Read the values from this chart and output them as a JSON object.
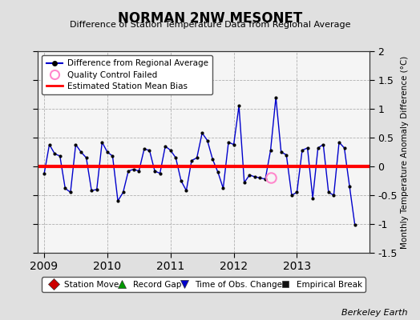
{
  "title": "NORMAN 2NW MESONET",
  "subtitle": "Difference of Station Temperature Data from Regional Average",
  "ylabel_right": "Monthly Temperature Anomaly Difference (°C)",
  "credit": "Berkeley Earth",
  "ylim": [
    -1.5,
    2.0
  ],
  "yticks": [
    -1.5,
    -1.0,
    -0.5,
    0.0,
    0.5,
    1.0,
    1.5,
    2.0
  ],
  "xlim": [
    2008.9,
    2014.15
  ],
  "xticks": [
    2009,
    2010,
    2011,
    2012,
    2013
  ],
  "bias": 0.0,
  "background_color": "#e0e0e0",
  "plot_bg_color": "#f5f5f5",
  "line_color": "#0000cc",
  "marker_color": "#000000",
  "bias_color": "#ff0000",
  "qc_fail_color": "#ff88cc",
  "data_x": [
    2009.0,
    2009.083,
    2009.167,
    2009.25,
    2009.333,
    2009.417,
    2009.5,
    2009.583,
    2009.667,
    2009.75,
    2009.833,
    2009.917,
    2010.0,
    2010.083,
    2010.167,
    2010.25,
    2010.333,
    2010.417,
    2010.5,
    2010.583,
    2010.667,
    2010.75,
    2010.833,
    2010.917,
    2011.0,
    2011.083,
    2011.167,
    2011.25,
    2011.333,
    2011.417,
    2011.5,
    2011.583,
    2011.667,
    2011.75,
    2011.833,
    2011.917,
    2012.0,
    2012.083,
    2012.167,
    2012.25,
    2012.333,
    2012.417,
    2012.5,
    2012.583,
    2012.667,
    2012.75,
    2012.833,
    2012.917,
    2013.0,
    2013.083,
    2013.167,
    2013.25,
    2013.333,
    2013.417,
    2013.5,
    2013.583,
    2013.667,
    2013.75,
    2013.833,
    2013.917
  ],
  "data_y": [
    -0.13,
    0.38,
    0.22,
    0.18,
    -0.38,
    -0.45,
    0.38,
    0.25,
    0.15,
    -0.42,
    -0.4,
    0.42,
    0.25,
    0.18,
    -0.6,
    -0.45,
    -0.08,
    -0.05,
    -0.08,
    0.3,
    0.28,
    -0.08,
    -0.12,
    0.35,
    0.28,
    0.15,
    -0.25,
    -0.42,
    0.1,
    0.15,
    0.58,
    0.45,
    0.12,
    -0.1,
    -0.38,
    0.42,
    0.38,
    1.05,
    -0.28,
    -0.15,
    -0.18,
    -0.2,
    -0.22,
    0.28,
    1.2,
    0.25,
    0.2,
    -0.5,
    -0.45,
    0.28,
    0.32,
    -0.55,
    0.32,
    0.38,
    -0.45,
    -0.5,
    0.42,
    0.32,
    -0.35,
    -1.02
  ],
  "qc_fail_x": [
    2012.583
  ],
  "qc_fail_y": [
    -0.2
  ]
}
